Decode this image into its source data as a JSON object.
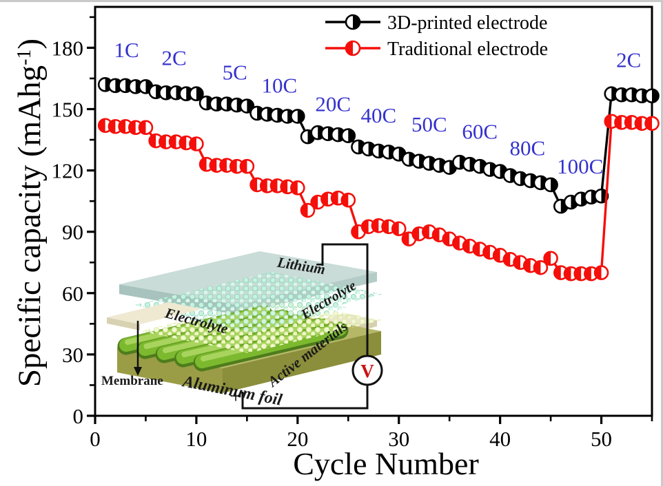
{
  "axes": {
    "xlabel": "Cycle Number",
    "ylabel_prefix": "Specific capacity (mAhg",
    "ylabel_sup": "-1",
    "ylabel_suffix": ")"
  },
  "colors": {
    "series_black": "#000000",
    "series_red": "#f50f0a",
    "rate_label_blue": "#3532cd",
    "voltmeter_red": "#cc1111"
  },
  "chart_data": {
    "type": "line",
    "title": "",
    "xlabel": "Cycle Number",
    "ylabel": "Specific capacity (mAhg-1)",
    "xlim": [
      0,
      55
    ],
    "ylim": [
      0,
      200
    ],
    "grid": false,
    "legend_position": "top-center-inside",
    "xticks_major": [
      0,
      10,
      20,
      30,
      40,
      50
    ],
    "xticks_minor": [
      5,
      15,
      25,
      35,
      45,
      55
    ],
    "yticks_major": [
      0,
      30,
      60,
      90,
      120,
      150,
      180
    ],
    "yticks_minor": [
      15,
      45,
      75,
      105,
      135,
      165,
      195
    ],
    "rate_steps": [
      "1C",
      "2C",
      "5C",
      "10C",
      "20C",
      "40C",
      "50C",
      "60C",
      "80C",
      "100C",
      "2C"
    ],
    "cycles_per_step": 5,
    "x": [
      1,
      2,
      3,
      4,
      5,
      6,
      7,
      8,
      9,
      10,
      11,
      12,
      13,
      14,
      15,
      16,
      17,
      18,
      19,
      20,
      21,
      22,
      23,
      24,
      25,
      26,
      27,
      28,
      29,
      30,
      31,
      32,
      33,
      34,
      35,
      36,
      37,
      38,
      39,
      40,
      41,
      42,
      43,
      44,
      45,
      46,
      47,
      48,
      49,
      50,
      51,
      52,
      53,
      54,
      55
    ],
    "series": [
      {
        "name": "3D-printed electrode",
        "color": "#000000",
        "marker": "circle-half-right-filled",
        "values": [
          162,
          161.5,
          161.5,
          161,
          161,
          158.5,
          158,
          158,
          157.5,
          157.5,
          153,
          152.5,
          152.5,
          152,
          151.5,
          148,
          147.5,
          147,
          146.5,
          146.5,
          136.5,
          138.5,
          138,
          137.5,
          137,
          131.5,
          130.5,
          129.5,
          129,
          128,
          125.5,
          124.5,
          123.5,
          122.5,
          121.5,
          124,
          123,
          122,
          120.5,
          119.5,
          117.5,
          116,
          115,
          114,
          113,
          102.5,
          104.5,
          106,
          107,
          107.5,
          157.5,
          157,
          157,
          156.5,
          156.5
        ]
      },
      {
        "name": "Traditional electrode",
        "color": "#f50f0a",
        "marker": "circle-half-left-filled",
        "values": [
          142,
          141.5,
          141.5,
          141,
          141,
          134.5,
          134,
          134,
          133.5,
          133,
          123,
          122.5,
          122.5,
          122,
          122,
          113,
          112.5,
          112.5,
          112,
          111.5,
          100.5,
          104.5,
          106,
          106.5,
          105.5,
          90,
          92.5,
          93,
          92.5,
          91.5,
          86.5,
          89,
          90,
          88.5,
          86.5,
          84.5,
          83,
          81.5,
          80,
          78.5,
          76.5,
          75,
          73.5,
          72.5,
          77,
          70,
          69.5,
          69.5,
          69.5,
          70,
          144,
          143.5,
          143.5,
          143,
          143
        ]
      }
    ],
    "annotations": [
      {
        "text": "1C",
        "x": 3.1,
        "y": 175.5
      },
      {
        "text": "2C",
        "x": 7.8,
        "y": 171.5
      },
      {
        "text": "5C",
        "x": 13.8,
        "y": 164.5
      },
      {
        "text": "10C",
        "x": 18.2,
        "y": 158
      },
      {
        "text": "20C",
        "x": 23.5,
        "y": 149
      },
      {
        "text": "40C",
        "x": 28,
        "y": 143.5
      },
      {
        "text": "50C",
        "x": 33,
        "y": 139
      },
      {
        "text": "60C",
        "x": 38,
        "y": 135.5
      },
      {
        "text": "80C",
        "x": 42.7,
        "y": 127.5
      },
      {
        "text": "100C",
        "x": 47.9,
        "y": 118.5
      },
      {
        "text": "2C",
        "x": 52.7,
        "y": 170.5
      }
    ]
  },
  "inset": {
    "labels": {
      "lithium": "Lithium",
      "electrolyte_mid": "Electrolyte",
      "electrolyte_right": "Electrolyte",
      "active_materials": "Active materials",
      "aluminum_foil": "Aluminum foil",
      "membrane": "Membrane",
      "minus": "-",
      "plus": "+",
      "voltmeter": "V"
    }
  }
}
